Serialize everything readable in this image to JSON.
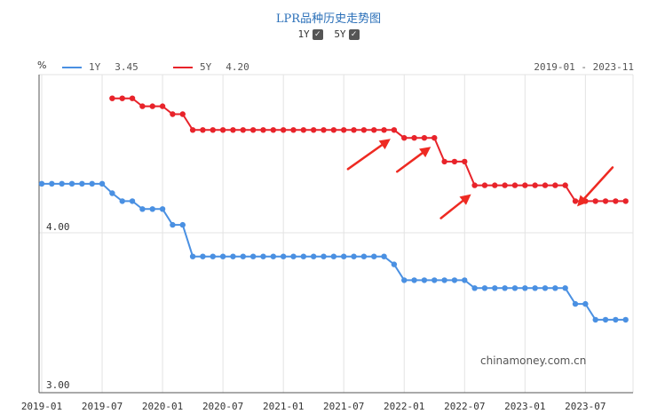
{
  "title": "LPR品种历史走势图",
  "toggles": [
    {
      "label": "1Y",
      "checked": true
    },
    {
      "label": "5Y",
      "checked": true
    }
  ],
  "legend": {
    "unit": "%",
    "items": [
      {
        "name": "1Y",
        "value": "3.45",
        "color": "#4a90e2"
      },
      {
        "name": "5Y",
        "value": "4.20",
        "color": "#e8232a"
      }
    ],
    "range": "2019-01 - 2023-11"
  },
  "watermark": "chinamoney.com.cn",
  "chart_data": {
    "type": "line",
    "x": [
      "2019-01",
      "2019-02",
      "2019-03",
      "2019-04",
      "2019-05",
      "2019-06",
      "2019-07",
      "2019-08",
      "2019-09",
      "2019-10",
      "2019-11",
      "2019-12",
      "2020-01",
      "2020-02",
      "2020-03",
      "2020-04",
      "2020-05",
      "2020-06",
      "2020-07",
      "2020-08",
      "2020-09",
      "2020-10",
      "2020-11",
      "2020-12",
      "2021-01",
      "2021-02",
      "2021-03",
      "2021-04",
      "2021-05",
      "2021-06",
      "2021-07",
      "2021-08",
      "2021-09",
      "2021-10",
      "2021-11",
      "2021-12",
      "2022-01",
      "2022-02",
      "2022-03",
      "2022-04",
      "2022-05",
      "2022-06",
      "2022-07",
      "2022-08",
      "2022-09",
      "2022-10",
      "2022-11",
      "2022-12",
      "2023-01",
      "2023-02",
      "2023-03",
      "2023-04",
      "2023-05",
      "2023-06",
      "2023-07",
      "2023-08",
      "2023-09",
      "2023-10",
      "2023-11"
    ],
    "series": [
      {
        "name": "1Y",
        "color": "#4a90e2",
        "values": [
          4.31,
          4.31,
          4.31,
          4.31,
          4.31,
          4.31,
          4.31,
          4.25,
          4.2,
          4.2,
          4.15,
          4.15,
          4.15,
          4.05,
          4.05,
          3.85,
          3.85,
          3.85,
          3.85,
          3.85,
          3.85,
          3.85,
          3.85,
          3.85,
          3.85,
          3.85,
          3.85,
          3.85,
          3.85,
          3.85,
          3.85,
          3.85,
          3.85,
          3.85,
          3.85,
          3.8,
          3.7,
          3.7,
          3.7,
          3.7,
          3.7,
          3.7,
          3.7,
          3.65,
          3.65,
          3.65,
          3.65,
          3.65,
          3.65,
          3.65,
          3.65,
          3.65,
          3.65,
          3.55,
          3.55,
          3.45,
          3.45,
          3.45,
          3.45
        ]
      },
      {
        "name": "5Y",
        "color": "#e8232a",
        "values": [
          null,
          null,
          null,
          null,
          null,
          null,
          null,
          4.85,
          4.85,
          4.85,
          4.8,
          4.8,
          4.8,
          4.75,
          4.75,
          4.65,
          4.65,
          4.65,
          4.65,
          4.65,
          4.65,
          4.65,
          4.65,
          4.65,
          4.65,
          4.65,
          4.65,
          4.65,
          4.65,
          4.65,
          4.65,
          4.65,
          4.65,
          4.65,
          4.65,
          4.65,
          4.6,
          4.6,
          4.6,
          4.6,
          4.45,
          4.45,
          4.45,
          4.3,
          4.3,
          4.3,
          4.3,
          4.3,
          4.3,
          4.3,
          4.3,
          4.3,
          4.3,
          4.2,
          4.2,
          4.2,
          4.2,
          4.2,
          4.2
        ]
      }
    ],
    "xticks": [
      "2019-01",
      "2019-07",
      "2020-01",
      "2020-07",
      "2021-01",
      "2021-07",
      "2022-01",
      "2022-07",
      "2023-01",
      "2023-07"
    ],
    "yticks": [
      3.0,
      4.0
    ],
    "ytick_labels": [
      "3.00",
      "4.00"
    ],
    "ylim": [
      3.0,
      5.0
    ],
    "grid": true,
    "annotations": [
      {
        "type": "arrow",
        "points_to": "2021-12",
        "series": "5Y"
      },
      {
        "type": "arrow",
        "points_to": "2022-04",
        "series": "5Y"
      },
      {
        "type": "arrow",
        "points_to": "2022-08",
        "series": "5Y"
      },
      {
        "type": "arrow",
        "points_to": "2023-06",
        "series": "5Y"
      }
    ]
  }
}
